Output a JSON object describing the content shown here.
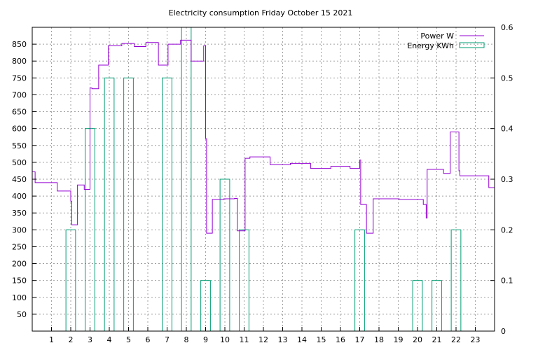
{
  "chart_data": {
    "type": "line",
    "title": "Electricity consumption Friday October 15 2021",
    "xlabel": "",
    "ylabel": "",
    "y2label": "",
    "xlim": [
      0,
      24
    ],
    "ylim": [
      0,
      900
    ],
    "y2lim": [
      0,
      0.6
    ],
    "x_ticks": [
      1,
      2,
      3,
      4,
      5,
      6,
      7,
      8,
      9,
      10,
      11,
      12,
      13,
      14,
      15,
      16,
      17,
      18,
      19,
      20,
      21,
      22,
      23
    ],
    "y_ticks": [
      50,
      100,
      150,
      200,
      250,
      300,
      350,
      400,
      450,
      500,
      550,
      600,
      650,
      700,
      750,
      800,
      850
    ],
    "y2_ticks": [
      0,
      0.1,
      0.2,
      0.3,
      0.4,
      0.5,
      0.6
    ],
    "grid": true,
    "legend_position": "top-right",
    "series": [
      {
        "name": "Power W",
        "axis": "left",
        "style": "steps",
        "color": "#9400d3",
        "x": [
          0,
          0.15,
          0.15,
          1.3,
          1.3,
          2.0,
          2.0,
          2.05,
          2.05,
          2.35,
          2.35,
          2.7,
          2.7,
          3.0,
          3.0,
          3.1,
          3.1,
          3.45,
          3.45,
          3.95,
          3.95,
          4.65,
          4.65,
          5.3,
          5.3,
          5.9,
          5.9,
          6.55,
          6.55,
          7.05,
          7.05,
          7.7,
          7.7,
          8.25,
          8.25,
          8.9,
          8.9,
          9.0,
          9.0,
          9.05,
          9.05,
          9.35,
          9.35,
          9.95,
          9.95,
          10.5,
          10.5,
          10.65,
          10.65,
          11.05,
          11.05,
          11.3,
          11.3,
          12.35,
          12.35,
          13.4,
          13.4,
          14.45,
          14.45,
          15.5,
          15.5,
          16.5,
          16.5,
          17.0,
          17.0,
          17.05,
          17.05,
          17.35,
          17.35,
          17.7,
          17.7,
          19.05,
          19.05,
          20.3,
          20.3,
          20.45,
          20.45,
          20.5,
          20.5,
          21.35,
          21.35,
          21.7,
          21.7,
          22.15,
          22.15,
          22.2,
          22.2,
          23.7,
          23.7,
          24.0
        ],
        "y": [
          472,
          472,
          440,
          440,
          415,
          415,
          385,
          385,
          315,
          315,
          433,
          433,
          420,
          420,
          720,
          720,
          718,
          718,
          788,
          788,
          845,
          845,
          852,
          852,
          843,
          843,
          855,
          855,
          788,
          788,
          850,
          850,
          862,
          862,
          800,
          800,
          845,
          845,
          570,
          570,
          290,
          290,
          390,
          390,
          392,
          392,
          393,
          393,
          297,
          297,
          512,
          512,
          516,
          516,
          493,
          493,
          497,
          497,
          482,
          482,
          488,
          488,
          482,
          482,
          507,
          507,
          375,
          375,
          290,
          290,
          392,
          392,
          390,
          390,
          375,
          375,
          335,
          335,
          479,
          479,
          467,
          467,
          590,
          590,
          475,
          475,
          460,
          460,
          425,
          425
        ]
      },
      {
        "name": "Energy KWh",
        "axis": "right",
        "style": "boxes",
        "color": "#009e73",
        "categories": [
          2,
          3,
          4,
          5,
          7,
          8,
          9,
          10,
          11,
          17,
          20,
          21,
          22
        ],
        "values": [
          0.2,
          0.4,
          0.5,
          0.5,
          0.5,
          0.6,
          0.1,
          0.3,
          0.2,
          0.2,
          0.1,
          0.1,
          0.2
        ]
      }
    ]
  }
}
